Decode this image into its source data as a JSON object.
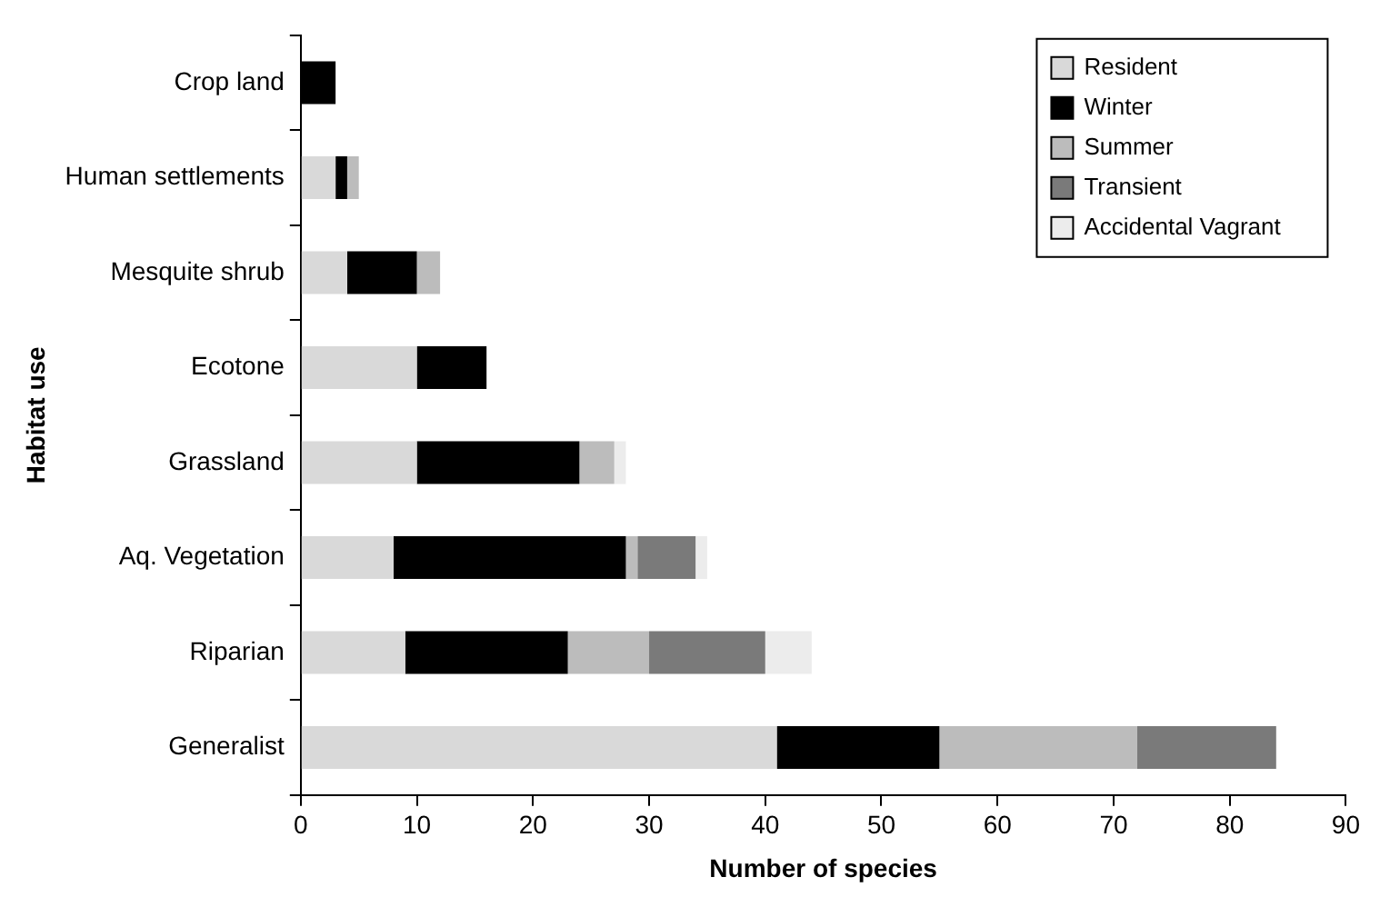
{
  "chart_data": {
    "type": "bar",
    "orientation": "horizontal",
    "stacked": true,
    "xlabel": "Number of species",
    "ylabel": "Habitat use",
    "categories": [
      "Crop land",
      "Human settlements",
      "Mesquite shrub",
      "Ecotone",
      "Grassland",
      "Aq. Vegetation",
      "Riparian",
      "Generalist"
    ],
    "series": [
      {
        "name": "Resident",
        "color": "#d9d9d9",
        "values": [
          0,
          3,
          4,
          10,
          10,
          8,
          9,
          41
        ]
      },
      {
        "name": "Winter",
        "color": "#000000",
        "values": [
          3,
          1,
          6,
          6,
          14,
          20,
          14,
          14
        ]
      },
      {
        "name": "Summer",
        "color": "#bcbcbc",
        "values": [
          0,
          1,
          2,
          0,
          3,
          1,
          7,
          17
        ]
      },
      {
        "name": "Transient",
        "color": "#7a7a7a",
        "values": [
          0,
          0,
          0,
          0,
          0,
          5,
          10,
          12
        ]
      },
      {
        "name": "Accidental Vagrant",
        "color": "#ececec",
        "values": [
          0,
          0,
          0,
          0,
          1,
          1,
          4,
          0
        ]
      }
    ],
    "xlim": [
      0,
      90
    ],
    "xticks": [
      0,
      10,
      20,
      30,
      40,
      50,
      60,
      70,
      80,
      90
    ],
    "grid": false,
    "legend": "top right"
  }
}
